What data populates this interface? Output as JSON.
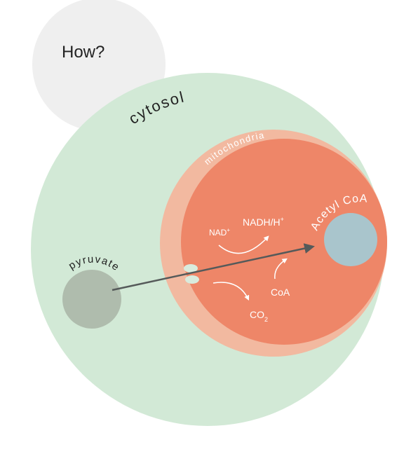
{
  "question": "How?",
  "labels": {
    "cytosol": "cytosol",
    "mitochondria": "mitochondria",
    "pyruvate": "pyruvate",
    "acetyl_coa": "Acetyl CoA",
    "nad": "NAD",
    "nad_sup": "+",
    "nadh": "NADH/H",
    "nadh_sup": "+",
    "coa": "CoA",
    "co2": "CO",
    "co2_sub": "2"
  },
  "colors": {
    "bubble": "#efefef",
    "cytosol": "#d2e9d6",
    "mito_outer": "#f2b9a0",
    "mito_inner": "#ee8668",
    "pyruvate": "#afbcad",
    "acetyl_coa": "#a9c5cc",
    "arrow": "#555a5a",
    "text_dark": "#222222",
    "text_light": "#ffffff",
    "transporter": "#d9ebdd"
  },
  "icons": {
    "main_arrow": "arrow-right-icon",
    "transporter": "membrane-transporter-icon"
  }
}
